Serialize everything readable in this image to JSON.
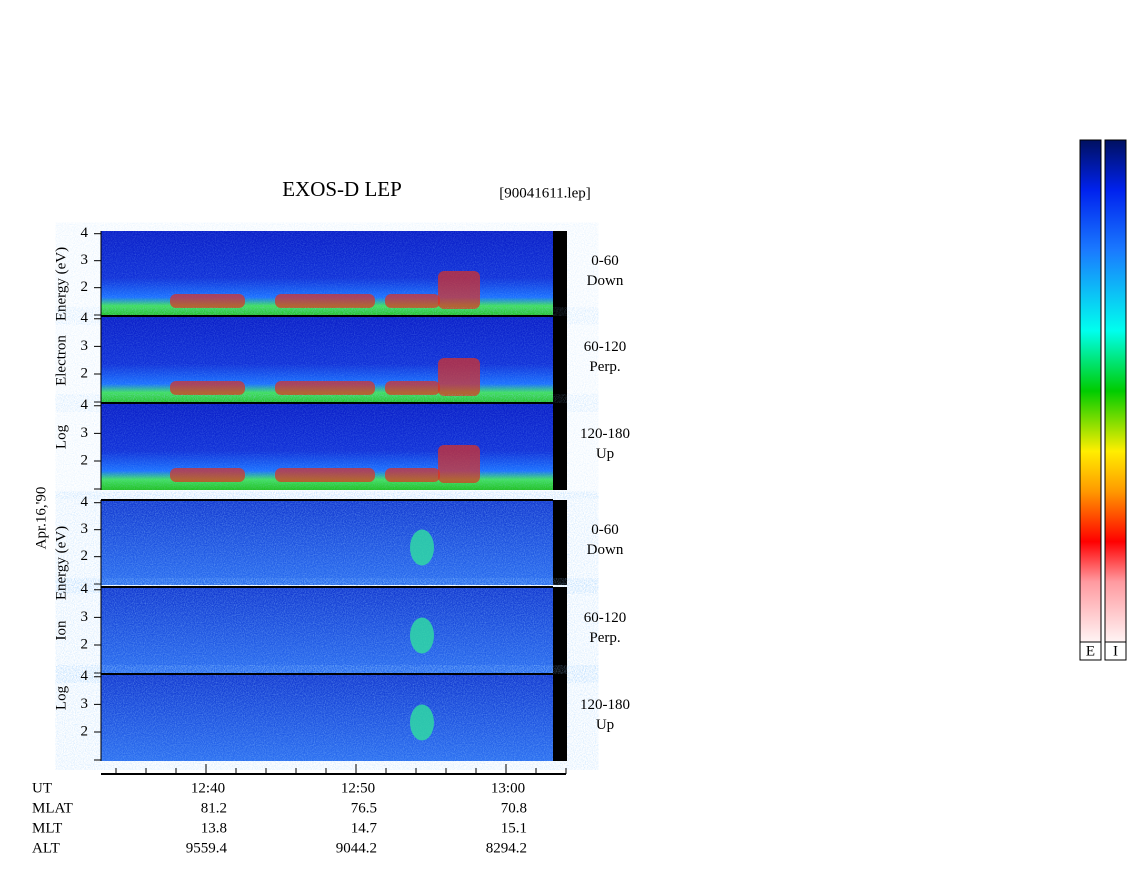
{
  "header": {
    "title": "EXOS-D LEP",
    "file": "[90041611.lep]"
  },
  "chart_data": {
    "type": "spectrogram",
    "date": "Apr.16,'90",
    "ylim": [
      0.95,
      4.1
    ],
    "yticks": [
      2,
      3,
      4
    ],
    "xticks": [
      "12:40",
      "12:50",
      "13:00"
    ],
    "groups": [
      {
        "ylabel": [
          "Log",
          "Electron",
          "Energy (eV)"
        ],
        "panels": [
          {
            "angle": "0-60",
            "direction": "Down"
          },
          {
            "angle": "60-120",
            "direction": "Perp."
          },
          {
            "angle": "120-180",
            "direction": "Up"
          }
        ]
      },
      {
        "ylabel": [
          "Log",
          "Ion",
          "Energy (eV)"
        ],
        "panels": [
          {
            "angle": "0-60",
            "direction": "Down"
          },
          {
            "angle": "60-120",
            "direction": "Perp."
          },
          {
            "angle": "120-180",
            "direction": "Up"
          }
        ]
      }
    ],
    "footer": {
      "rows": [
        {
          "label": "UT"
        },
        {
          "label": "MLAT",
          "values": [
            81.2,
            76.5,
            70.8
          ]
        },
        {
          "label": "MLT",
          "values": [
            13.8,
            14.7,
            15.1
          ]
        },
        {
          "label": "ALT",
          "values": [
            9559.4,
            9044.2,
            8294.2
          ]
        }
      ]
    },
    "colorbars": [
      "E",
      "I"
    ]
  }
}
